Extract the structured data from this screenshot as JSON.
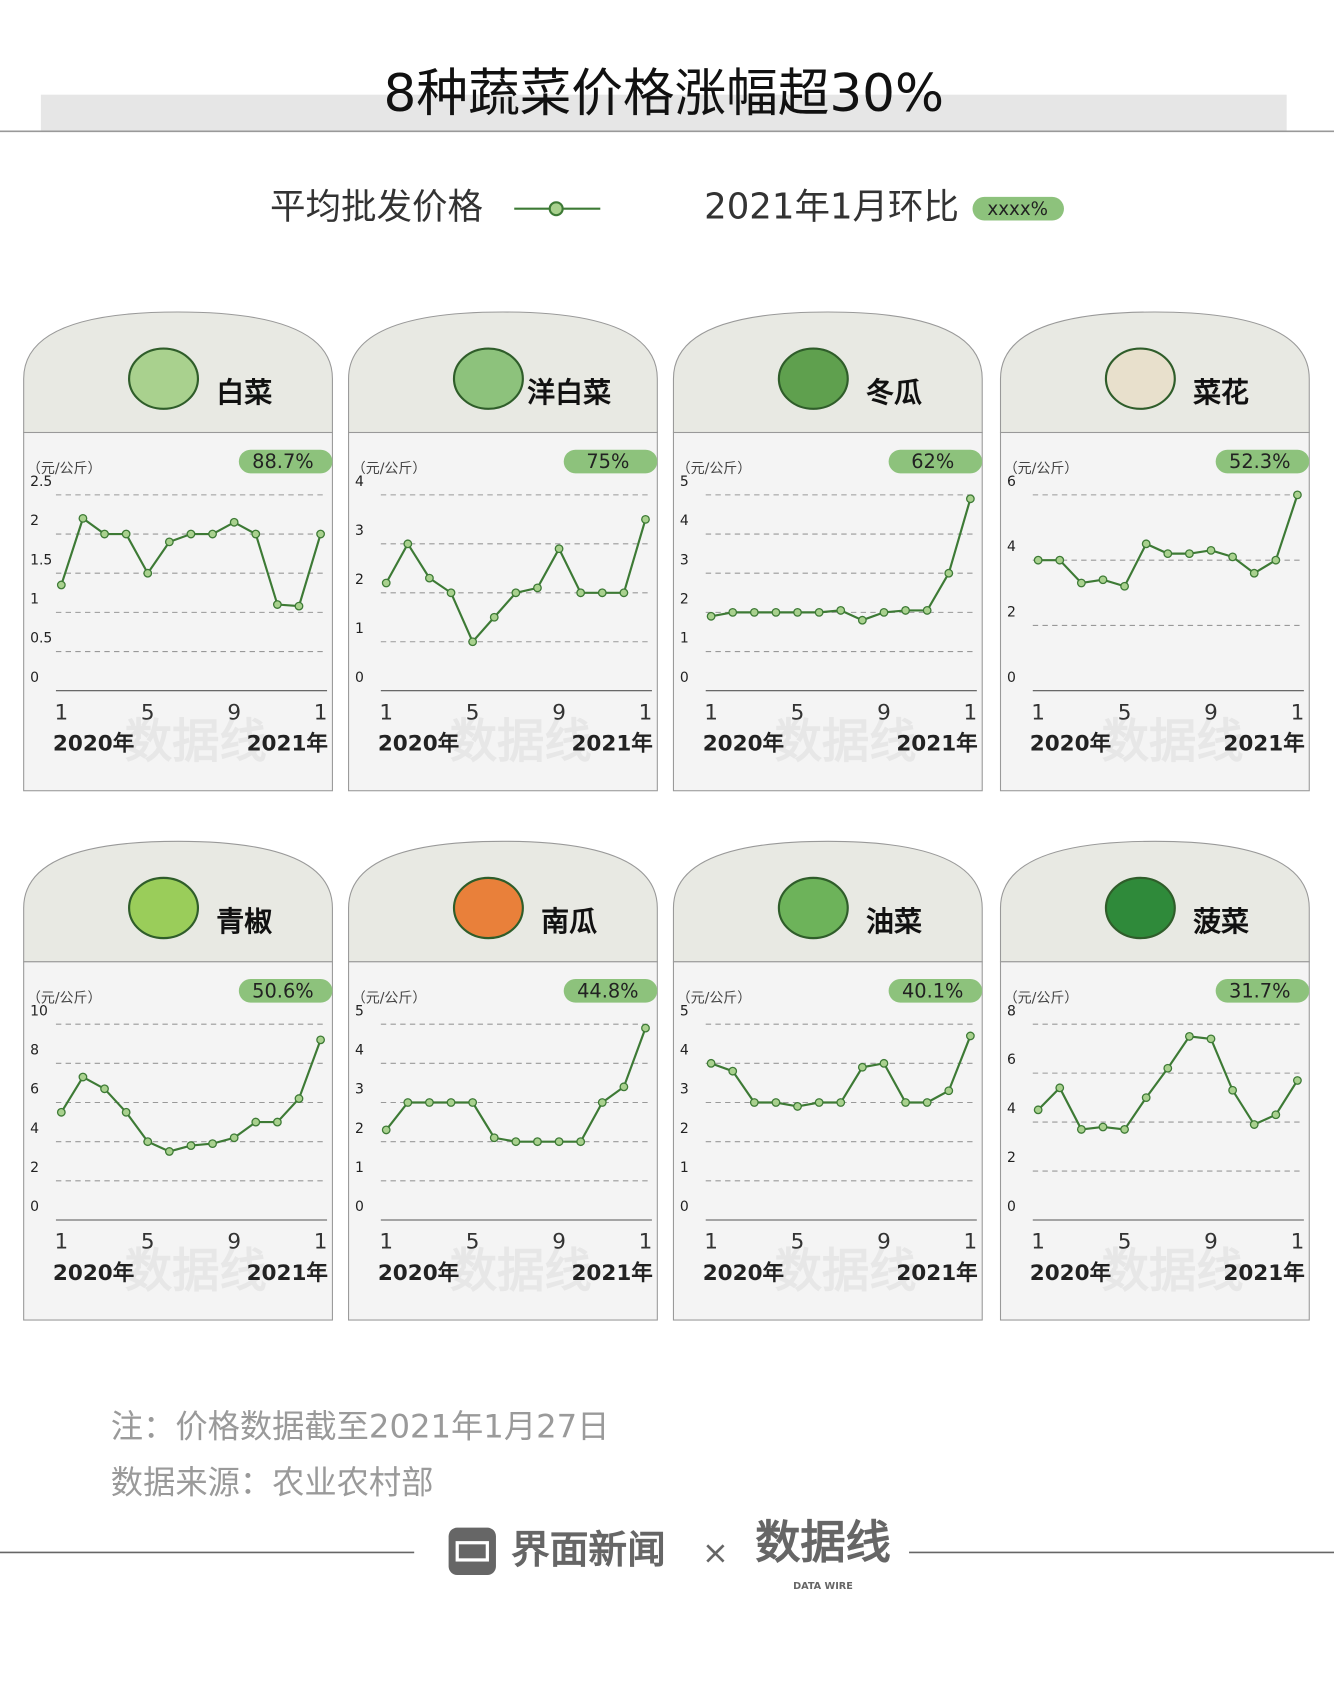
{
  "title": "8种蔬菜价格涨幅超30%",
  "legend": {
    "line_label": "平均批发价格",
    "badge_label": "2021年1月环比",
    "badge_sample": "xxxx%"
  },
  "chart_data": [
    {
      "type": "line",
      "title": "白菜",
      "unit": "（元/公斤）",
      "change": "88.7%",
      "color": "#3d7a35",
      "marker_color": "#a9d18e",
      "badge_color": "#8dc27c",
      "categories": [
        "1",
        null,
        null,
        null,
        "5",
        null,
        null,
        null,
        "9",
        null,
        null,
        null,
        "1"
      ],
      "x_groups": [
        "2020年",
        "2021年"
      ],
      "values": [
        1.35,
        2.2,
        2.0,
        2.0,
        1.5,
        1.9,
        2.0,
        2.0,
        2.15,
        2.0,
        1.1,
        1.08,
        2.0
      ],
      "ylim": [
        0,
        2.5
      ],
      "yticks": [
        0,
        0.5,
        1,
        1.5,
        2,
        2.5
      ],
      "grid": true
    },
    {
      "type": "line",
      "title": "洋白菜",
      "unit": "（元/公斤）",
      "change": "75%",
      "color": "#3d7a35",
      "marker_color": "#a9d18e",
      "badge_color": "#8dc27c",
      "categories": [
        "1",
        null,
        null,
        null,
        "5",
        null,
        null,
        null,
        "9",
        null,
        null,
        null,
        "1"
      ],
      "x_groups": [
        "2020年",
        "2021年"
      ],
      "values": [
        2.2,
        3.0,
        2.3,
        2.0,
        1.0,
        1.5,
        2.0,
        2.1,
        2.9,
        2.0,
        2.0,
        2.0,
        3.5
      ],
      "ylim": [
        0,
        4
      ],
      "yticks": [
        0,
        1,
        2,
        3,
        4
      ],
      "grid": true
    },
    {
      "type": "line",
      "title": "冬瓜",
      "unit": "（元/公斤）",
      "change": "62%",
      "color": "#3d7a35",
      "marker_color": "#a9d18e",
      "badge_color": "#8dc27c",
      "categories": [
        "1",
        null,
        null,
        null,
        "5",
        null,
        null,
        null,
        "9",
        null,
        null,
        null,
        "1"
      ],
      "x_groups": [
        "2020年",
        "2021年"
      ],
      "values": [
        1.9,
        2.0,
        2.0,
        2.0,
        2.0,
        2.0,
        2.05,
        1.8,
        2.0,
        2.05,
        2.05,
        3.0,
        4.9
      ],
      "ylim": [
        0,
        5
      ],
      "yticks": [
        0,
        1,
        2,
        3,
        4,
        5
      ],
      "grid": true
    },
    {
      "type": "line",
      "title": "菜花",
      "unit": "（元/公斤）",
      "change": "52.3%",
      "color": "#3d7a35",
      "marker_color": "#a9d18e",
      "badge_color": "#8dc27c",
      "categories": [
        "1",
        null,
        null,
        null,
        "5",
        null,
        null,
        null,
        "9",
        null,
        null,
        null,
        "1"
      ],
      "x_groups": [
        "2020年",
        "2021年"
      ],
      "values": [
        4.0,
        4.0,
        3.3,
        3.4,
        3.2,
        4.5,
        4.2,
        4.2,
        4.3,
        4.1,
        3.6,
        4.0,
        6.0
      ],
      "ylim": [
        0,
        6
      ],
      "yticks": [
        0,
        2,
        4,
        6
      ],
      "grid": true
    },
    {
      "type": "line",
      "title": "青椒",
      "unit": "（元/公斤）",
      "change": "50.6%",
      "color": "#3d7a35",
      "marker_color": "#a9d18e",
      "badge_color": "#8dc27c",
      "categories": [
        "1",
        null,
        null,
        null,
        "5",
        null,
        null,
        null,
        "9",
        null,
        null,
        null,
        "1"
      ],
      "x_groups": [
        "2020年",
        "2021年"
      ],
      "values": [
        5.5,
        7.3,
        6.7,
        5.5,
        4.0,
        3.5,
        3.8,
        3.9,
        4.2,
        5.0,
        5.0,
        6.2,
        9.2
      ],
      "ylim": [
        0,
        10
      ],
      "yticks": [
        0,
        2,
        4,
        6,
        8,
        10
      ],
      "grid": true
    },
    {
      "type": "line",
      "title": "南瓜",
      "unit": "（元/公斤）",
      "change": "44.8%",
      "color": "#3d7a35",
      "marker_color": "#a9d18e",
      "badge_color": "#8dc27c",
      "categories": [
        "1",
        null,
        null,
        null,
        "5",
        null,
        null,
        null,
        "9",
        null,
        null,
        null,
        "1"
      ],
      "x_groups": [
        "2020年",
        "2021年"
      ],
      "values": [
        2.3,
        3.0,
        3.0,
        3.0,
        3.0,
        2.1,
        2.0,
        2.0,
        2.0,
        2.0,
        3.0,
        3.4,
        4.9
      ],
      "ylim": [
        0,
        5
      ],
      "yticks": [
        0,
        1,
        2,
        3,
        4,
        5
      ],
      "grid": true
    },
    {
      "type": "line",
      "title": "油菜",
      "unit": "（元/公斤）",
      "change": "40.1%",
      "color": "#3d7a35",
      "marker_color": "#a9d18e",
      "badge_color": "#8dc27c",
      "categories": [
        "1",
        null,
        null,
        null,
        "5",
        null,
        null,
        null,
        "9",
        null,
        null,
        null,
        "1"
      ],
      "x_groups": [
        "2020年",
        "2021年"
      ],
      "values": [
        4.0,
        3.8,
        3.0,
        3.0,
        2.9,
        3.0,
        3.0,
        3.9,
        4.0,
        3.0,
        3.0,
        3.3,
        4.7
      ],
      "ylim": [
        0,
        5
      ],
      "yticks": [
        0,
        1,
        2,
        3,
        4,
        5
      ],
      "grid": true
    },
    {
      "type": "line",
      "title": "菠菜",
      "unit": "（元/公斤）",
      "change": "31.7%",
      "color": "#3d7a35",
      "marker_color": "#a9d18e",
      "badge_color": "#8dc27c",
      "categories": [
        "1",
        null,
        null,
        null,
        "5",
        null,
        null,
        null,
        "9",
        null,
        null,
        null,
        "1"
      ],
      "x_groups": [
        "2020年",
        "2021年"
      ],
      "values": [
        4.5,
        5.4,
        3.7,
        3.8,
        3.7,
        5.0,
        6.2,
        7.5,
        7.4,
        5.3,
        3.9,
        4.3,
        5.7
      ],
      "ylim": [
        0,
        8
      ],
      "yticks": [
        0,
        2,
        4,
        6,
        8
      ],
      "grid": true
    }
  ],
  "notes": [
    "注：价格数据截至2021年1月27日",
    "数据来源：农业农村部"
  ],
  "footer": {
    "brand": "界面新闻",
    "times": "×",
    "logo": "数据线",
    "logo_sub": "DATA WIRE"
  }
}
